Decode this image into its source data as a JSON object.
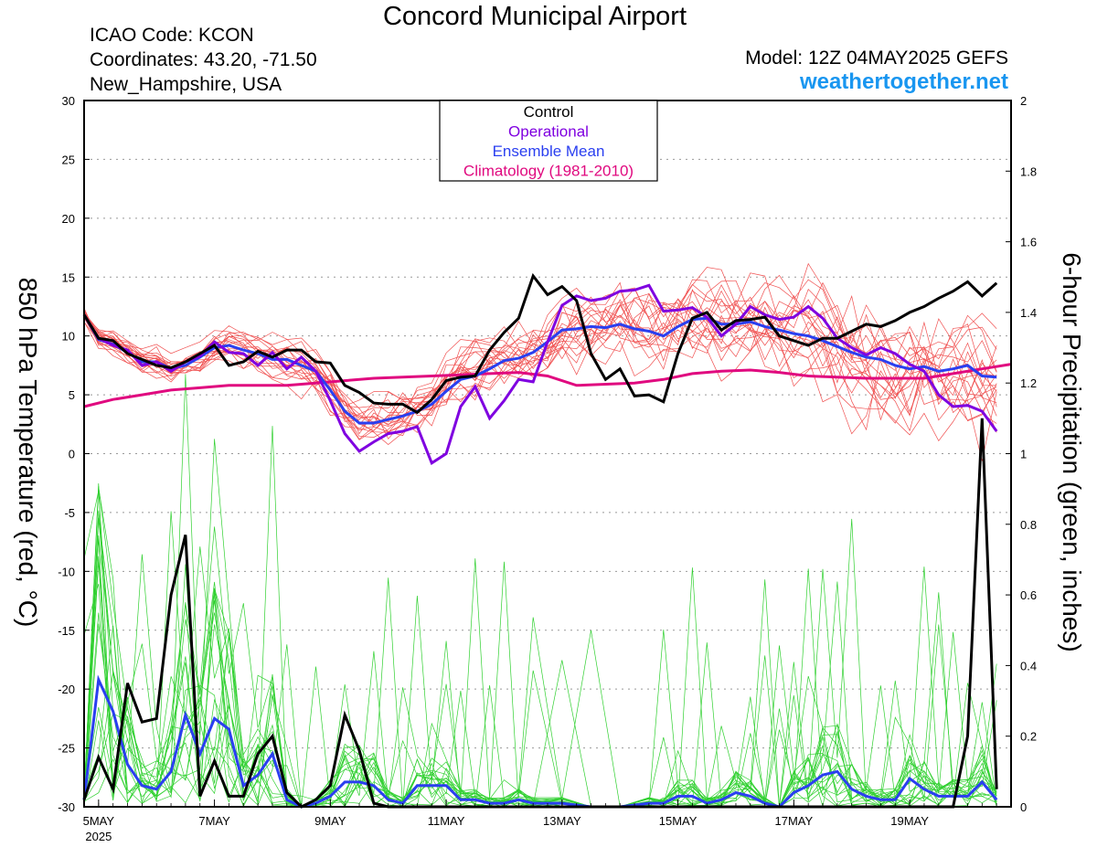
{
  "header": {
    "title": "Concord Municipal Airport",
    "icao": "ICAO Code: KCON",
    "coordinates": "Coordinates: 43.20, -71.50",
    "location": "New_Hampshire, USA",
    "model": "Model: 12Z 04MAY2025 GEFS",
    "website": "weathertogether.net"
  },
  "colors": {
    "control": "#000000",
    "operational": "#7f00e0",
    "ensemble_mean": "#2a3ff0",
    "climatology": "#e0097f",
    "members_temp": "#f05050",
    "members_precip": "#30d030",
    "website": "#1996f0"
  },
  "chart_data": {
    "type": "line",
    "x_unit": "hours after 12Z 04MAY2025 (6-hourly)",
    "xlim": [
      6,
      390
    ],
    "x_tick_labels": [
      "5MAY",
      "7MAY",
      "9MAY",
      "11MAY",
      "13MAY",
      "15MAY",
      "17MAY",
      "19MAY"
    ],
    "x_tick_hours": [
      12,
      60,
      108,
      156,
      204,
      252,
      300,
      348
    ],
    "x_year_label": "2025",
    "left_axis": {
      "label": "850 hPa Temperature (red, °C)",
      "ylim": [
        -30,
        30
      ],
      "ticks": [
        30,
        25,
        20,
        15,
        10,
        5,
        0,
        -5,
        -10,
        -15,
        -20,
        -25,
        -30
      ]
    },
    "right_axis": {
      "label": "6-hour Precipitation (green, inches)",
      "ylim": [
        0,
        2
      ],
      "ticks": [
        2,
        1.8,
        1.6,
        1.4,
        1.2,
        1,
        0.8,
        0.6,
        0.4,
        0.2,
        0
      ]
    },
    "grid": "horizontal dotted",
    "legend": {
      "placement": "top-center",
      "entries": [
        "Control",
        "Operational",
        "Ensemble Mean",
        "Climatology (1981-2010)"
      ]
    },
    "temperature": {
      "control": [
        [
          6,
          11.8
        ],
        [
          12,
          9.8
        ],
        [
          18,
          9.6
        ],
        [
          24,
          8.5
        ],
        [
          30,
          8.0
        ],
        [
          36,
          7.5
        ],
        [
          42,
          7.3
        ],
        [
          48,
          7.8
        ],
        [
          54,
          8.5
        ],
        [
          60,
          9.2
        ],
        [
          66,
          7.5
        ],
        [
          72,
          7.8
        ],
        [
          78,
          8.7
        ],
        [
          84,
          8.2
        ],
        [
          90,
          8.8
        ],
        [
          96,
          8.8
        ],
        [
          102,
          7.8
        ],
        [
          108,
          7.7
        ],
        [
          114,
          5.8
        ],
        [
          120,
          5.2
        ],
        [
          126,
          4.3
        ],
        [
          132,
          4.2
        ],
        [
          138,
          4.2
        ],
        [
          144,
          3.5
        ],
        [
          150,
          4.6
        ],
        [
          156,
          6.2
        ],
        [
          162,
          6.5
        ],
        [
          168,
          6.6
        ],
        [
          174,
          8.8
        ],
        [
          180,
          10.3
        ],
        [
          186,
          11.5
        ],
        [
          192,
          15.1
        ],
        [
          198,
          13.5
        ],
        [
          204,
          14.2
        ],
        [
          210,
          13.0
        ],
        [
          216,
          8.5
        ],
        [
          222,
          6.3
        ],
        [
          228,
          7.2
        ],
        [
          234,
          4.9
        ],
        [
          240,
          5.0
        ],
        [
          246,
          4.4
        ],
        [
          252,
          8.5
        ],
        [
          258,
          11.5
        ],
        [
          264,
          12.0
        ],
        [
          270,
          10.5
        ],
        [
          276,
          11.3
        ],
        [
          282,
          11.4
        ],
        [
          288,
          11.6
        ],
        [
          294,
          10.0
        ],
        [
          300,
          9.6
        ],
        [
          306,
          9.2
        ],
        [
          312,
          9.8
        ],
        [
          318,
          9.8
        ],
        [
          324,
          10.4
        ],
        [
          330,
          11.0
        ],
        [
          336,
          10.8
        ],
        [
          342,
          11.3
        ],
        [
          348,
          12.0
        ],
        [
          354,
          12.5
        ],
        [
          360,
          13.2
        ],
        [
          366,
          13.8
        ],
        [
          372,
          14.6
        ],
        [
          378,
          13.4
        ],
        [
          384,
          14.5
        ]
      ],
      "operational": [
        [
          6,
          11.8
        ],
        [
          12,
          9.8
        ],
        [
          18,
          9.2
        ],
        [
          24,
          8.8
        ],
        [
          30,
          7.5
        ],
        [
          36,
          7.8
        ],
        [
          42,
          7.0
        ],
        [
          48,
          7.8
        ],
        [
          54,
          8.3
        ],
        [
          60,
          9.5
        ],
        [
          66,
          8.6
        ],
        [
          72,
          8.5
        ],
        [
          78,
          7.5
        ],
        [
          84,
          8.6
        ],
        [
          90,
          7.2
        ],
        [
          96,
          8.2
        ],
        [
          102,
          7.0
        ],
        [
          108,
          4.5
        ],
        [
          114,
          1.7
        ],
        [
          120,
          0.2
        ],
        [
          126,
          1.0
        ],
        [
          132,
          1.7
        ],
        [
          138,
          1.9
        ],
        [
          144,
          2.3
        ],
        [
          150,
          -0.8
        ],
        [
          156,
          0.0
        ],
        [
          162,
          4.0
        ],
        [
          168,
          5.7
        ],
        [
          174,
          3.0
        ],
        [
          180,
          4.5
        ],
        [
          186,
          6.3
        ],
        [
          192,
          6.1
        ],
        [
          198,
          9.5
        ],
        [
          204,
          12.6
        ],
        [
          210,
          13.4
        ],
        [
          216,
          13.0
        ],
        [
          222,
          13.2
        ],
        [
          228,
          13.8
        ],
        [
          234,
          13.9
        ],
        [
          240,
          14.3
        ],
        [
          246,
          12.1
        ],
        [
          252,
          12.2
        ],
        [
          258,
          12.4
        ],
        [
          264,
          11.6
        ],
        [
          270,
          10.0
        ],
        [
          276,
          11.0
        ],
        [
          282,
          12.5
        ],
        [
          288,
          11.8
        ],
        [
          294,
          11.4
        ],
        [
          300,
          11.6
        ],
        [
          306,
          12.5
        ],
        [
          312,
          11.5
        ],
        [
          318,
          9.8
        ],
        [
          324,
          9.0
        ],
        [
          330,
          8.4
        ],
        [
          336,
          9.0
        ],
        [
          342,
          8.5
        ],
        [
          348,
          7.6
        ],
        [
          354,
          7.0
        ],
        [
          360,
          5.0
        ],
        [
          366,
          4.0
        ],
        [
          372,
          4.1
        ],
        [
          378,
          3.6
        ],
        [
          384,
          1.9
        ]
      ],
      "ensemble_mean": [
        [
          6,
          11.8
        ],
        [
          12,
          9.7
        ],
        [
          18,
          9.3
        ],
        [
          24,
          8.6
        ],
        [
          30,
          7.8
        ],
        [
          36,
          7.8
        ],
        [
          42,
          7.2
        ],
        [
          48,
          7.5
        ],
        [
          54,
          8.2
        ],
        [
          60,
          9.0
        ],
        [
          66,
          9.2
        ],
        [
          72,
          8.8
        ],
        [
          78,
          8.5
        ],
        [
          84,
          8.0
        ],
        [
          90,
          8.0
        ],
        [
          96,
          7.5
        ],
        [
          102,
          7.0
        ],
        [
          108,
          5.4
        ],
        [
          114,
          3.6
        ],
        [
          120,
          2.6
        ],
        [
          126,
          2.6
        ],
        [
          132,
          2.9
        ],
        [
          138,
          3.2
        ],
        [
          144,
          3.6
        ],
        [
          150,
          4.2
        ],
        [
          156,
          5.3
        ],
        [
          162,
          6.3
        ],
        [
          168,
          6.6
        ],
        [
          174,
          7.2
        ],
        [
          180,
          7.9
        ],
        [
          186,
          8.1
        ],
        [
          192,
          8.6
        ],
        [
          198,
          9.5
        ],
        [
          204,
          10.5
        ],
        [
          210,
          10.6
        ],
        [
          216,
          10.8
        ],
        [
          222,
          10.7
        ],
        [
          228,
          11.0
        ],
        [
          234,
          10.6
        ],
        [
          240,
          10.4
        ],
        [
          246,
          10.0
        ],
        [
          252,
          10.8
        ],
        [
          258,
          11.4
        ],
        [
          264,
          11.5
        ],
        [
          270,
          11.0
        ],
        [
          276,
          11.0
        ],
        [
          282,
          11.2
        ],
        [
          288,
          10.8
        ],
        [
          294,
          10.5
        ],
        [
          300,
          10.2
        ],
        [
          306,
          10.0
        ],
        [
          312,
          9.6
        ],
        [
          318,
          9.1
        ],
        [
          324,
          8.6
        ],
        [
          330,
          8.2
        ],
        [
          336,
          8.0
        ],
        [
          342,
          7.5
        ],
        [
          348,
          7.2
        ],
        [
          354,
          7.4
        ],
        [
          360,
          7.0
        ],
        [
          366,
          7.2
        ],
        [
          372,
          7.5
        ],
        [
          378,
          6.6
        ],
        [
          384,
          6.5
        ]
      ],
      "climatology": [
        [
          6,
          4.0
        ],
        [
          18,
          4.6
        ],
        [
          30,
          5.0
        ],
        [
          42,
          5.4
        ],
        [
          54,
          5.6
        ],
        [
          66,
          5.8
        ],
        [
          78,
          5.8
        ],
        [
          90,
          5.8
        ],
        [
          102,
          6.0
        ],
        [
          114,
          6.2
        ],
        [
          126,
          6.4
        ],
        [
          138,
          6.5
        ],
        [
          150,
          6.6
        ],
        [
          162,
          6.7
        ],
        [
          174,
          6.8
        ],
        [
          186,
          6.9
        ],
        [
          198,
          6.6
        ],
        [
          210,
          5.8
        ],
        [
          222,
          5.9
        ],
        [
          234,
          6.0
        ],
        [
          246,
          6.3
        ],
        [
          258,
          6.8
        ],
        [
          270,
          7.0
        ],
        [
          282,
          7.1
        ],
        [
          294,
          6.9
        ],
        [
          306,
          6.6
        ],
        [
          318,
          6.5
        ],
        [
          330,
          6.4
        ],
        [
          342,
          6.4
        ],
        [
          354,
          6.4
        ],
        [
          366,
          6.8
        ],
        [
          378,
          7.2
        ],
        [
          390,
          7.6
        ]
      ]
    },
    "precipitation": {
      "control": [
        [
          6,
          0.02
        ],
        [
          12,
          0.14
        ],
        [
          18,
          0.05
        ],
        [
          24,
          0.35
        ],
        [
          30,
          0.24
        ],
        [
          36,
          0.25
        ],
        [
          42,
          0.6
        ],
        [
          48,
          0.77
        ],
        [
          54,
          0.03
        ],
        [
          60,
          0.13
        ],
        [
          66,
          0.03
        ],
        [
          72,
          0.03
        ],
        [
          78,
          0.15
        ],
        [
          84,
          0.2
        ],
        [
          90,
          0.04
        ],
        [
          96,
          0.0
        ],
        [
          102,
          0.02
        ],
        [
          108,
          0.06
        ],
        [
          114,
          0.26
        ],
        [
          120,
          0.16
        ],
        [
          126,
          0.01
        ],
        [
          132,
          0.0
        ],
        [
          138,
          0.0
        ],
        [
          144,
          0.0
        ],
        [
          150,
          0.0
        ],
        [
          156,
          0.0
        ],
        [
          204,
          0.0
        ],
        [
          246,
          0.0
        ],
        [
          270,
          0.0
        ],
        [
          282,
          0.0
        ],
        [
          300,
          0.0
        ],
        [
          360,
          0.0
        ],
        [
          366,
          0.0
        ],
        [
          372,
          0.2
        ],
        [
          378,
          1.1
        ],
        [
          384,
          0.05
        ]
      ],
      "ensemble_mean": [
        [
          6,
          0.02
        ],
        [
          12,
          0.36
        ],
        [
          18,
          0.27
        ],
        [
          24,
          0.12
        ],
        [
          30,
          0.06
        ],
        [
          36,
          0.05
        ],
        [
          42,
          0.1
        ],
        [
          48,
          0.26
        ],
        [
          54,
          0.15
        ],
        [
          60,
          0.25
        ],
        [
          66,
          0.22
        ],
        [
          72,
          0.06
        ],
        [
          78,
          0.09
        ],
        [
          84,
          0.15
        ],
        [
          90,
          0.02
        ],
        [
          96,
          0.0
        ],
        [
          102,
          0.01
        ],
        [
          108,
          0.03
        ],
        [
          114,
          0.07
        ],
        [
          120,
          0.07
        ],
        [
          126,
          0.06
        ],
        [
          132,
          0.02
        ],
        [
          138,
          0.01
        ],
        [
          144,
          0.06
        ],
        [
          150,
          0.06
        ],
        [
          156,
          0.06
        ],
        [
          162,
          0.02
        ],
        [
          168,
          0.02
        ],
        [
          174,
          0.01
        ],
        [
          180,
          0.01
        ],
        [
          186,
          0.02
        ],
        [
          192,
          0.01
        ],
        [
          204,
          0.01
        ],
        [
          216,
          0.0
        ],
        [
          228,
          0.0
        ],
        [
          240,
          0.01
        ],
        [
          246,
          0.01
        ],
        [
          252,
          0.03
        ],
        [
          258,
          0.03
        ],
        [
          264,
          0.01
        ],
        [
          270,
          0.02
        ],
        [
          276,
          0.04
        ],
        [
          282,
          0.03
        ],
        [
          288,
          0.01
        ],
        [
          294,
          0.0
        ],
        [
          300,
          0.04
        ],
        [
          306,
          0.06
        ],
        [
          312,
          0.09
        ],
        [
          318,
          0.1
        ],
        [
          324,
          0.05
        ],
        [
          330,
          0.03
        ],
        [
          336,
          0.02
        ],
        [
          342,
          0.02
        ],
        [
          348,
          0.08
        ],
        [
          354,
          0.05
        ],
        [
          360,
          0.03
        ],
        [
          366,
          0.03
        ],
        [
          372,
          0.03
        ],
        [
          378,
          0.07
        ],
        [
          384,
          0.02
        ]
      ]
    }
  }
}
